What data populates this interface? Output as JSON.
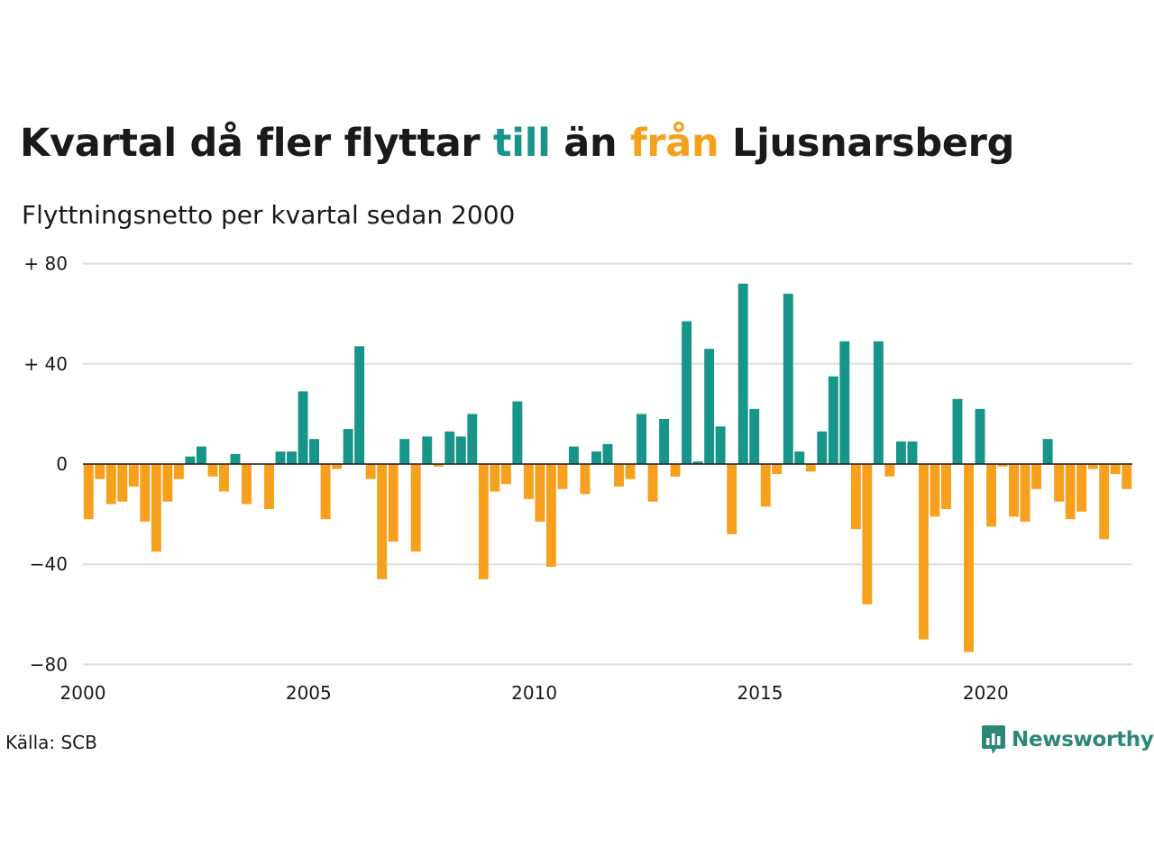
{
  "header": {
    "title_parts": [
      "Kvartal då fler flyttar ",
      "till",
      " än ",
      "från",
      " Ljusnarsberg"
    ],
    "subtitle": "Flyttningsnetto per kvartal sedan 2000"
  },
  "footer": {
    "source": "Källa: SCB",
    "logo_text": "Newsworthy"
  },
  "colors": {
    "positive": "#179588",
    "negative": "#f7a01e",
    "text": "#1a1a1a",
    "grid": "#dddddd",
    "logo": "#2b8777"
  },
  "chart_data": {
    "type": "bar",
    "title": "Kvartal då fler flyttar till än från Ljusnarsberg",
    "subtitle": "Flyttningsnetto per kvartal sedan 2000",
    "x_start": "2000 Q1",
    "x_end": "2023 Q2",
    "xticks": [
      "2000",
      "2005",
      "2010",
      "2015",
      "2020"
    ],
    "yticks": [
      "+ 80",
      "+ 40",
      "0",
      "−40",
      "−80"
    ],
    "ytick_values": [
      80,
      40,
      0,
      -40,
      -80
    ],
    "ylim": [
      -80,
      80
    ],
    "grid": true,
    "values": [
      -22,
      -6,
      -16,
      -15,
      -9,
      -23,
      -35,
      -15,
      -6,
      3,
      7,
      -5,
      -11,
      4,
      -16,
      0,
      -18,
      5,
      5,
      29,
      10,
      -22,
      -2,
      14,
      47,
      -6,
      -46,
      -31,
      10,
      -35,
      11,
      -1,
      13,
      11,
      20,
      -46,
      -11,
      -8,
      25,
      -14,
      -23,
      -41,
      -10,
      7,
      -12,
      5,
      8,
      -9,
      -6,
      20,
      -15,
      18,
      -5,
      57,
      1,
      46,
      15,
      -28,
      72,
      22,
      -17,
      -4,
      68,
      5,
      -3,
      13,
      35,
      49,
      -26,
      -56,
      49,
      -5,
      9,
      9,
      -70,
      -21,
      -18,
      26,
      -75,
      22,
      -25,
      -1,
      -21,
      -23,
      -10,
      10,
      -15,
      -22,
      -19,
      -2,
      -30,
      -4,
      -10
    ]
  }
}
